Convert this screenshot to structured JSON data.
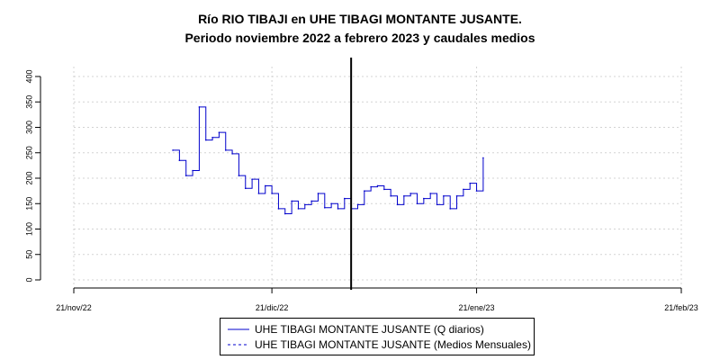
{
  "title": "Río RIO TIBAJI en UHE TIBAGI MONTANTE JUSANTE.",
  "subtitle": "Periodo noviembre 2022 a febrero 2023 y caudales medios",
  "legend": {
    "daily": "UHE TIBAGI MONTANTE JUSANTE (Q diarios)",
    "monthly": "UHE TIBAGI MONTANTE JUSANTE (Medios Mensuales)"
  },
  "colors": {
    "series": "#0000cc",
    "grid": "#d3d3d3",
    "axis": "#000000",
    "marker_line": "#000000"
  },
  "chart_data": {
    "type": "line",
    "title": "Río RIO TIBAJI en UHE TIBAGI MONTANTE JUSANTE.",
    "subtitle": "Periodo noviembre 2022 a febrero 2023 y caudales medios",
    "xlabel": "",
    "ylabel": "",
    "x_ticks": [
      "21/nov/22",
      "21/dic/22",
      "21/ene/23",
      "21/feb/23"
    ],
    "y_ticks": [
      0,
      50,
      100,
      150,
      200,
      250,
      300,
      350,
      400
    ],
    "ylim": [
      0,
      400
    ],
    "grid": true,
    "legend_position": "bottom",
    "vertical_marker_date": "2023-01-02",
    "series": [
      {
        "name": "UHE TIBAGI MONTANTE JUSANTE (Q diarios)",
        "style": "solid",
        "x": [
          "2022-12-06",
          "2022-12-07",
          "2022-12-08",
          "2022-12-09",
          "2022-12-10",
          "2022-12-11",
          "2022-12-12",
          "2022-12-13",
          "2022-12-14",
          "2022-12-15",
          "2022-12-16",
          "2022-12-17",
          "2022-12-18",
          "2022-12-19",
          "2022-12-20",
          "2022-12-21",
          "2022-12-22",
          "2022-12-23",
          "2022-12-24",
          "2022-12-25",
          "2022-12-26",
          "2022-12-27",
          "2022-12-28",
          "2022-12-29",
          "2022-12-30",
          "2022-12-31",
          "2023-01-01",
          "2023-01-02",
          "2023-01-03",
          "2023-01-04",
          "2023-01-05",
          "2023-01-06",
          "2023-01-07",
          "2023-01-08",
          "2023-01-09",
          "2023-01-10",
          "2023-01-11",
          "2023-01-12",
          "2023-01-13",
          "2023-01-14",
          "2023-01-15",
          "2023-01-16",
          "2023-01-17",
          "2023-01-18",
          "2023-01-19",
          "2023-01-20",
          "2023-01-21",
          "2023-01-22"
        ],
        "y": [
          255,
          235,
          205,
          215,
          340,
          275,
          280,
          290,
          255,
          248,
          205,
          180,
          198,
          170,
          185,
          170,
          140,
          130,
          155,
          140,
          148,
          155,
          170,
          142,
          150,
          140,
          160,
          140,
          148,
          175,
          183,
          185,
          178,
          165,
          148,
          165,
          170,
          150,
          160,
          170,
          148,
          165,
          140,
          165,
          178,
          190,
          175,
          240
        ]
      },
      {
        "name": "UHE TIBAGI MONTANTE JUSANTE (Medios Mensuales)",
        "style": "dashed",
        "x": [],
        "y": []
      }
    ]
  }
}
